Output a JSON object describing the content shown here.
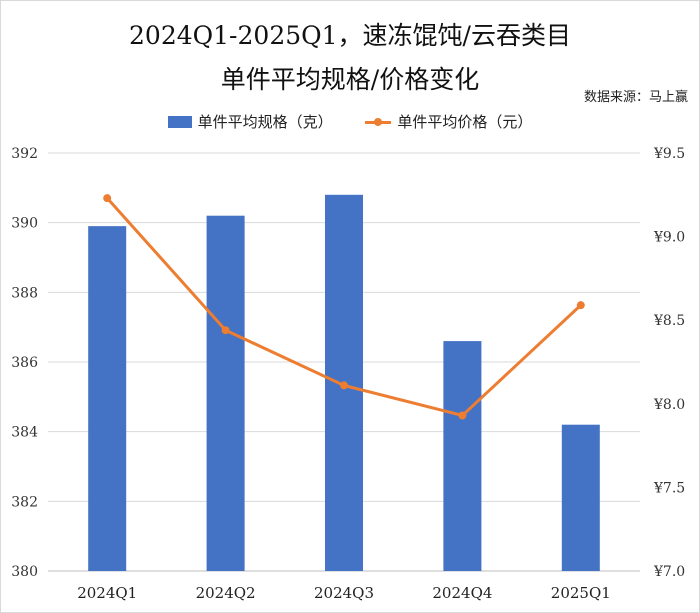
{
  "title_line1": "2024Q1-2025Q1，速冻馄饨/云吞类目",
  "title_line2": "单件平均规格/价格变化",
  "source": "数据来源：马上赢",
  "chart_data": {
    "type": "bar",
    "categories": [
      "2024Q1",
      "2024Q2",
      "2024Q3",
      "2024Q4",
      "2025Q1"
    ],
    "series": [
      {
        "name": "单件平均规格（克）",
        "type": "bar",
        "axis": "left",
        "color": "#4472c4",
        "values": [
          389.9,
          390.2,
          390.8,
          386.6,
          384.2
        ]
      },
      {
        "name": "单件平均价格（元）",
        "type": "line",
        "axis": "right",
        "color": "#ed7d31",
        "values": [
          9.23,
          8.44,
          8.11,
          7.93,
          8.59
        ]
      }
    ],
    "y_left": {
      "ylim": [
        380,
        392
      ],
      "ticks": [
        "380",
        "382",
        "384",
        "386",
        "388",
        "390",
        "392"
      ]
    },
    "y_right": {
      "ylim": [
        7.0,
        9.5
      ],
      "ticks": [
        "¥7.0",
        "¥7.5",
        "¥8.0",
        "¥8.5",
        "¥9.0",
        "¥9.5"
      ]
    },
    "grid": true,
    "legend_position": "top-center"
  }
}
